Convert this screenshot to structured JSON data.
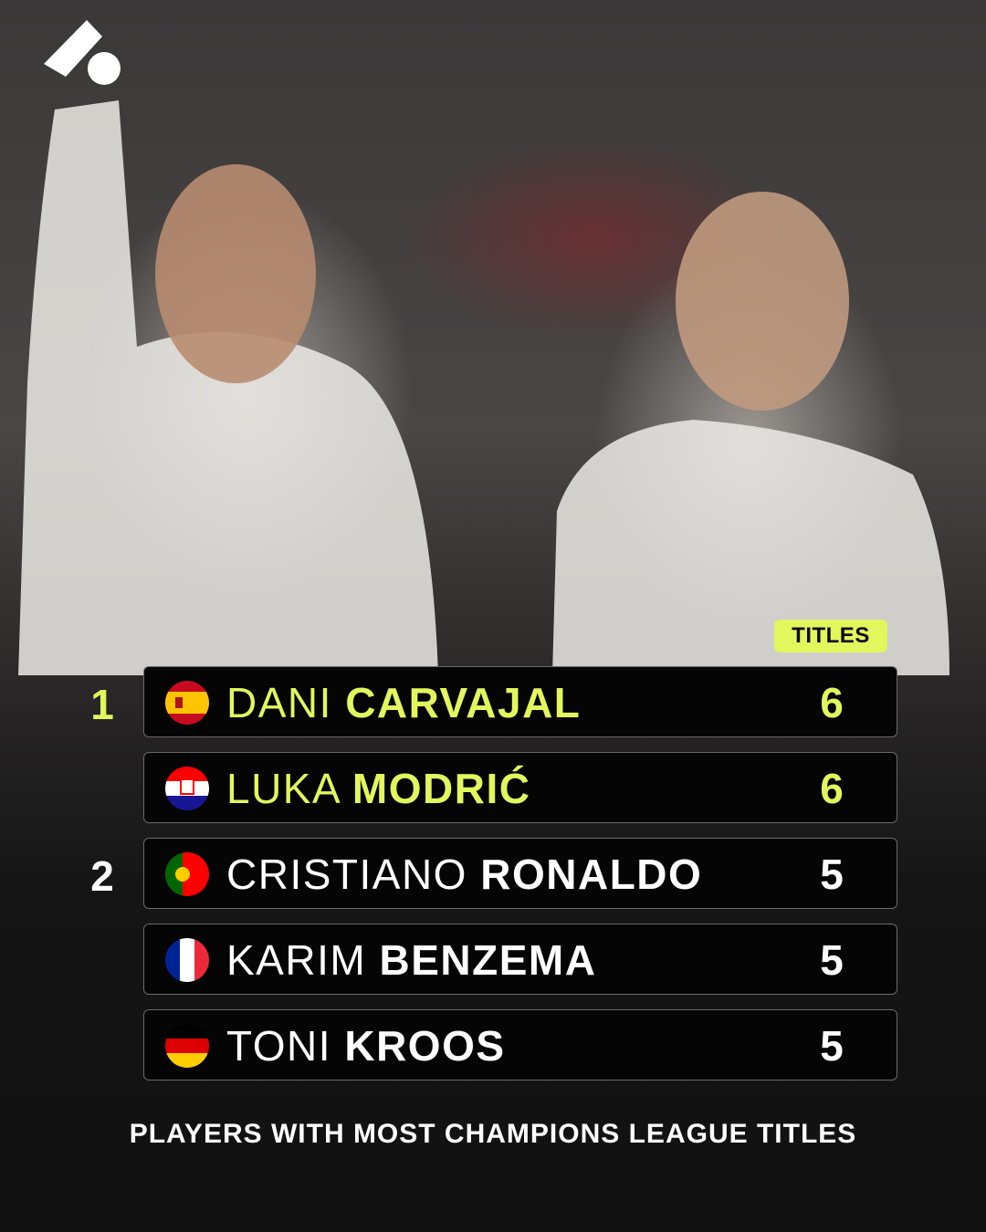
{
  "table": {
    "header": "TITLES",
    "rows": [
      {
        "rank": "1",
        "first": "DANI",
        "last": "CARVAJAL",
        "titles": 6
      },
      {
        "first": "LUKA",
        "last": "MODRIĆ",
        "titles": 6
      },
      {
        "rank": "2",
        "first": "CRISTIANO",
        "last": "RONALDO",
        "titles": 5
      },
      {
        "first": "KARIM",
        "last": "BENZEMA",
        "titles": 5
      },
      {
        "first": "TONI",
        "last": "KROOS",
        "titles": 5
      }
    ]
  },
  "caption": "PLAYERS WITH MOST CHAMPIONS LEAGUE TITLES"
}
